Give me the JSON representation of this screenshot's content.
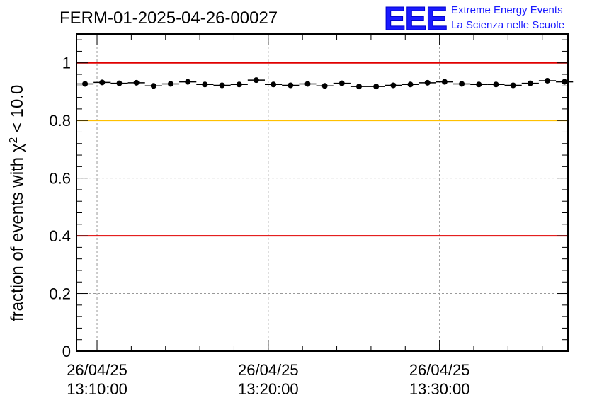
{
  "header": {
    "title": "FERM-01-2025-04-26-00027",
    "logo_letters": "EEE",
    "logo_line1": "Extreme Energy Events",
    "logo_line2": "La Scienza nelle Scuole"
  },
  "colors": {
    "logo": "#1a1aff",
    "red_line": "#e00000",
    "yellow_line": "#ffc000",
    "markers": "#000000",
    "grid": "#999999"
  },
  "chart_data": {
    "type": "scatter",
    "title": "FERM-01-2025-04-26-00027",
    "ylabel_prefix": "fraction of events with ",
    "ylabel_symbol": "χ",
    "ylabel_sup": "2",
    "ylabel_suffix": " < 10.0",
    "xlabel": "",
    "x_unit": "minutes",
    "xlim": [
      8.8,
      37.5
    ],
    "ylim": [
      0,
      1.1
    ],
    "grid": true,
    "y_ticks": [
      0,
      0.2,
      0.4,
      0.6,
      0.8,
      1.0
    ],
    "y_tick_labels": [
      "0",
      "0.2",
      "0.4",
      "0.6",
      "0.8",
      "1"
    ],
    "x_ticks": [
      {
        "x": 10,
        "date": "26/04/25",
        "time": "13:10:00"
      },
      {
        "x": 20,
        "date": "26/04/25",
        "time": "13:20:00"
      },
      {
        "x": 30,
        "date": "26/04/25",
        "time": "13:30:00"
      }
    ],
    "x_bin_half_width": 0.5,
    "points_x": [
      9.3,
      10.3,
      11.3,
      12.3,
      13.3,
      14.3,
      15.3,
      16.3,
      17.3,
      18.3,
      19.3,
      20.3,
      21.3,
      22.3,
      23.3,
      24.3,
      25.3,
      26.3,
      27.3,
      28.3,
      29.3,
      30.3,
      31.3,
      32.3,
      33.3,
      34.3,
      35.3,
      36.3,
      37.3
    ],
    "points_y": [
      0.927,
      0.932,
      0.929,
      0.931,
      0.92,
      0.927,
      0.934,
      0.925,
      0.922,
      0.925,
      0.94,
      0.925,
      0.922,
      0.927,
      0.92,
      0.929,
      0.918,
      0.918,
      0.922,
      0.925,
      0.931,
      0.934,
      0.927,
      0.925,
      0.925,
      0.922,
      0.929,
      0.938,
      0.934
    ],
    "reference_lines": [
      {
        "y": 1.0,
        "color": "#e00000"
      },
      {
        "y": 0.8,
        "color": "#ffc000"
      },
      {
        "y": 0.4,
        "color": "#e00000"
      }
    ]
  }
}
